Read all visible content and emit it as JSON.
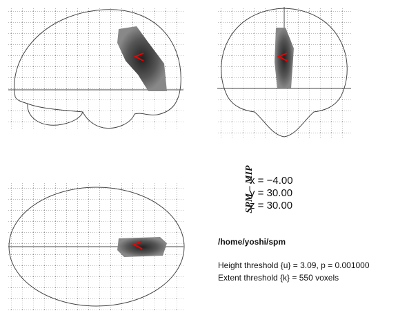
{
  "mip_label": "SPM – MIP",
  "coordinates": [
    "x = −4.00",
    "y = 30.00",
    "z = 30.00"
  ],
  "path": "/home/yoshi/spm",
  "thresholds": [
    "Height threshold {u} = 3.09, p = 0.001000",
    "Extent threshold {k} = 550 voxels"
  ]
}
